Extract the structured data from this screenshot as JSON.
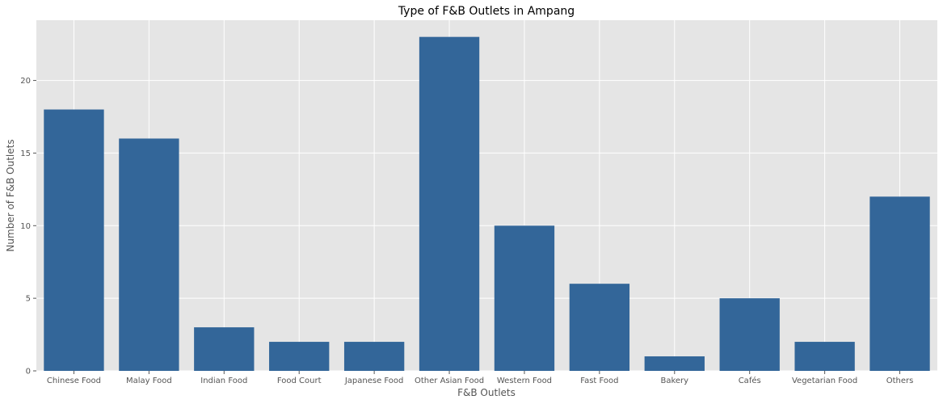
{
  "chart_data": {
    "type": "bar",
    "title": "Type of F&B Outlets in Ampang",
    "xlabel": "F&B Outlets",
    "ylabel": "Number of F&B Outlets",
    "categories": [
      "Chinese Food",
      "Malay Food",
      "Indian Food",
      "Food Court",
      "Japanese Food",
      "Other Asian Food",
      "Western Food",
      "Fast Food",
      "Bakery",
      "Cafés",
      "Vegetarian Food",
      "Others"
    ],
    "values": [
      18,
      16,
      3,
      2,
      2,
      23,
      10,
      6,
      1,
      5,
      2,
      12
    ],
    "ylim": [
      0,
      24.15
    ],
    "yticks": [
      0,
      5,
      10,
      15,
      20
    ],
    "grid": true,
    "colors": {
      "bar": "#336699",
      "plot_background": "#e5e5e5",
      "grid": "#ffffff"
    }
  }
}
